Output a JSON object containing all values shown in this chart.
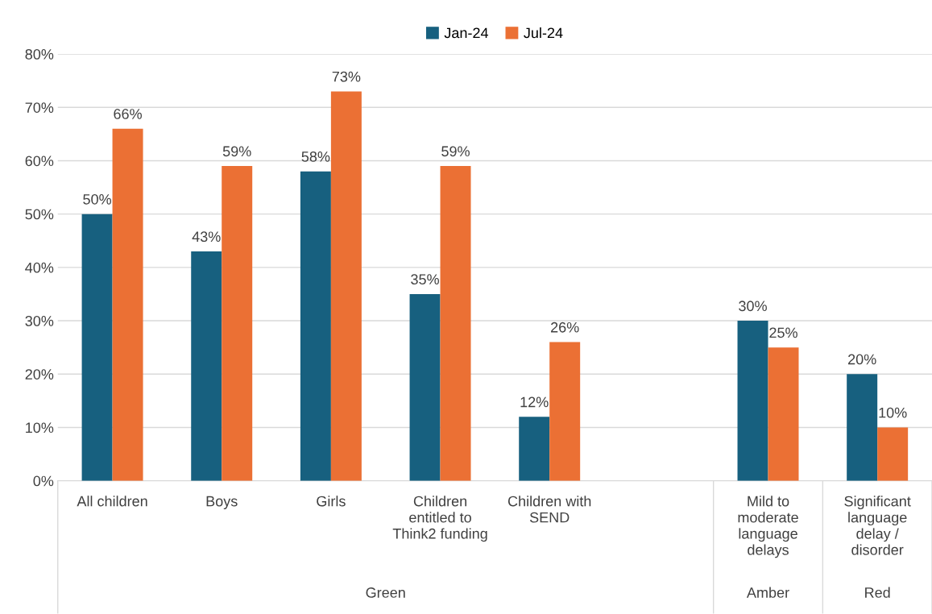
{
  "chart_data": {
    "type": "bar",
    "categories": [
      "All children",
      "Boys",
      "Girls",
      "Children\nentitled to\nThink2 funding",
      "Children with\nSEND",
      null,
      "Mild to\nmoderate\nlanguage\ndelays",
      "Significant\nlanguage\ndelay /\ndisorder"
    ],
    "series": [
      {
        "name": "Jan-24",
        "color": "#17607f",
        "values": [
          50,
          43,
          58,
          35,
          12,
          null,
          30,
          20
        ],
        "value_labels": [
          "50%",
          "43%",
          "58%",
          "35%",
          "12%",
          null,
          "30%",
          "20%"
        ]
      },
      {
        "name": "Jul-24",
        "color": "#eb7034",
        "values": [
          66,
          59,
          73,
          59,
          26,
          null,
          25,
          10
        ],
        "value_labels": [
          "66%",
          "59%",
          "73%",
          "59%",
          "26%",
          null,
          "25%",
          "10%"
        ]
      }
    ],
    "annotations": [
      "Green",
      "Amber",
      "Red"
    ],
    "ylim": [
      0,
      80
    ],
    "yticks": [
      {
        "value": 0,
        "label": "0%"
      },
      {
        "value": 10,
        "label": "10%"
      },
      {
        "value": 20,
        "label": "20%"
      },
      {
        "value": 30,
        "label": "30%"
      },
      {
        "value": 40,
        "label": "40%"
      },
      {
        "value": 50,
        "label": "50%"
      },
      {
        "value": 60,
        "label": "60%"
      },
      {
        "value": 70,
        "label": "70%"
      },
      {
        "value": 80,
        "label": "80%"
      }
    ],
    "grid": "y",
    "legend": "top"
  }
}
